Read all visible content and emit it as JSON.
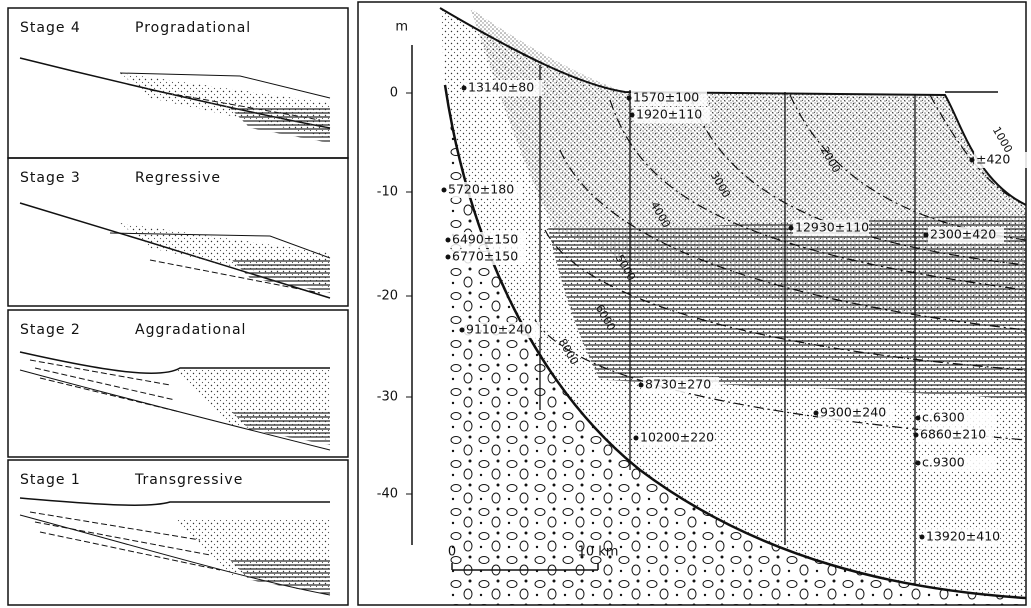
{
  "panels": [
    {
      "stage": "Stage 4",
      "name": "Progradational"
    },
    {
      "stage": "Stage 3",
      "name": "Regressive"
    },
    {
      "stage": "Stage 2",
      "name": "Aggradational"
    },
    {
      "stage": "Stage 1",
      "name": "Transgressive"
    }
  ],
  "section": {
    "depth_unit": "m",
    "depth_ticks": [
      "0",
      "-10",
      "-20",
      "-30",
      "-40"
    ],
    "scale_start": "0",
    "scale_end": "10 km",
    "dates": [
      "13140±80",
      "1570±100",
      "1920±110",
      "±420",
      "5720±180",
      "12930±110",
      "2300±420",
      "6490±150",
      "6770±150",
      "9110±240",
      "8730±270",
      "9300±240",
      "c.6300",
      "6860±210",
      "10200±220",
      "c.9300",
      "13920±410"
    ],
    "isochrons": [
      "1000",
      "2000",
      "3000",
      "4000",
      "5000",
      "6000",
      "8000"
    ]
  }
}
